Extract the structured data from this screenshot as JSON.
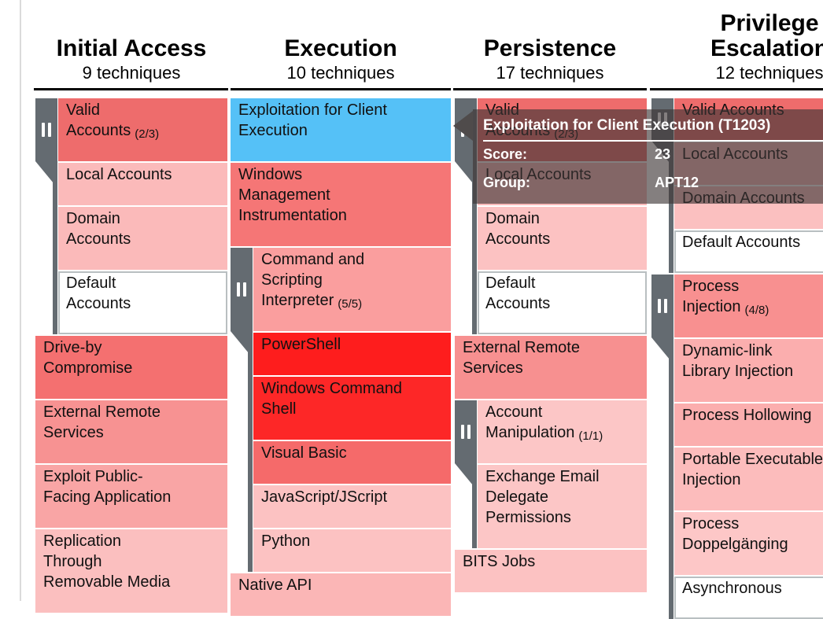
{
  "app": "ATT&CK Navigator matrix",
  "colors": {
    "highlight_blue": "#55c1f7",
    "sidebar_gray": "#646b71",
    "score_high_red": "#fe1d1d",
    "header_text": "#000000"
  },
  "tooltip": {
    "title": "Exploitation for Client Execution (T1203)",
    "score_label": "Score:",
    "score_value": "23",
    "group_label": "Group:",
    "group_value": "APT12"
  },
  "columns": [
    {
      "title": "Initial Access",
      "subtitle": "9 techniques",
      "cells": [
        {
          "label": "Valid\nAccounts",
          "count": "(2/3)",
          "role": "parent",
          "color": "#ee6c6c"
        },
        {
          "label": "Local Accounts",
          "role": "sub",
          "color": "#fbbaba"
        },
        {
          "label": "Domain\nAccounts",
          "role": "sub",
          "color": "#fbbaba"
        },
        {
          "label": "Default\nAccounts",
          "role": "sub",
          "color": "#ffffff"
        },
        {
          "label": "Drive-by\nCompromise",
          "role": "plain",
          "color": "#f47070"
        },
        {
          "label": "External Remote\nServices",
          "role": "plain",
          "color": "#f79292"
        },
        {
          "label": "Exploit Public-\nFacing Application",
          "role": "plain",
          "color": "#f9a5a5"
        },
        {
          "label": "Replication\nThrough\nRemovable Media",
          "role": "plain",
          "color": "#fbbfbf"
        }
      ]
    },
    {
      "title": "Execution",
      "subtitle": "10 techniques",
      "cells": [
        {
          "label": "Exploitation for Client\nExecution",
          "role": "plain",
          "color": "#55c1f7"
        },
        {
          "label": "Windows\nManagement\nInstrumentation",
          "role": "plain",
          "color": "#f57676"
        },
        {
          "label": "Command and\nScripting\nInterpreter",
          "count": "(5/5)",
          "role": "parent",
          "color": "#fa9e9e"
        },
        {
          "label": "PowerShell",
          "role": "sub",
          "color": "#fe1d1d"
        },
        {
          "label": "Windows Command\nShell",
          "role": "sub",
          "color": "#fd2727"
        },
        {
          "label": "Visual Basic",
          "role": "sub",
          "color": "#f56a6a"
        },
        {
          "label": "JavaScript/JScript",
          "role": "sub",
          "color": "#fcc2c2"
        },
        {
          "label": "Python",
          "role": "sub",
          "color": "#fcc2c2"
        },
        {
          "label": "Native API",
          "role": "plain",
          "color": "#fbb6b6"
        }
      ]
    },
    {
      "title": "Persistence",
      "subtitle": "17 techniques",
      "cells": [
        {
          "label": "Valid\nAccounts",
          "count": "(2/3)",
          "role": "parent",
          "color": "#ee6c6c"
        },
        {
          "label": "Local Accounts",
          "role": "sub",
          "color": "#fbbaba"
        },
        {
          "label": "Domain\nAccounts",
          "role": "sub",
          "color": "#fcc2c2"
        },
        {
          "label": "Default\nAccounts",
          "role": "sub",
          "color": "#ffffff"
        },
        {
          "label": "External Remote\nServices",
          "role": "plain",
          "color": "#f79090"
        },
        {
          "label": "Account\nManipulation",
          "count": "(1/1)",
          "role": "parent",
          "color": "#fcc6c6"
        },
        {
          "label": "Exchange Email\nDelegate\nPermissions",
          "role": "sub",
          "color": "#fcc6c6"
        },
        {
          "label": "BITS Jobs",
          "role": "plain",
          "color": "#fcc2c2"
        }
      ]
    },
    {
      "title": "Privilege\nEscalation",
      "subtitle": "12 techniques",
      "cells": [
        {
          "label": "Valid Accounts",
          "role": "parent",
          "color": "#ee6c6c"
        },
        {
          "label": "Local Accounts",
          "role": "sub",
          "color": "#fbbaba"
        },
        {
          "label": "Domain Accounts",
          "role": "sub",
          "color": "#fbc0c0"
        },
        {
          "label": "Default Accounts",
          "role": "sub",
          "color": "#ffffff"
        },
        {
          "label": "Process\nInjection",
          "count": "(4/8)",
          "role": "parent",
          "color": "#f89090"
        },
        {
          "label": "Dynamic-link\nLibrary Injection",
          "role": "sub",
          "color": "#fbaeae"
        },
        {
          "label": "Process Hollowing",
          "role": "sub",
          "color": "#fbaeae"
        },
        {
          "label": "Portable Executable\nInjection",
          "role": "sub",
          "color": "#fcbcbc"
        },
        {
          "label": "Process\nDoppelgänging",
          "role": "sub",
          "color": "#fdc7c7"
        },
        {
          "label": "Asynchronous",
          "role": "sub",
          "color": "#ffffff"
        }
      ]
    }
  ]
}
